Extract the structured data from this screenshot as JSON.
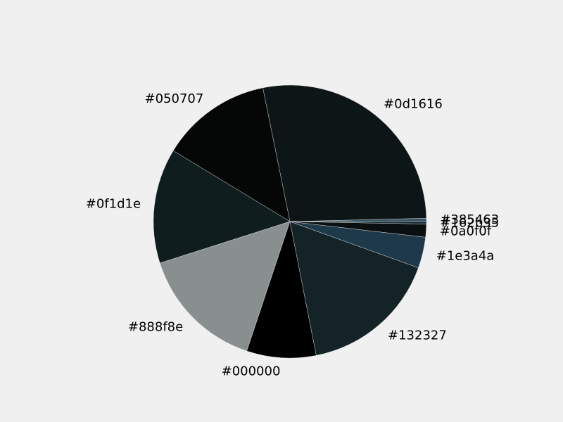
{
  "chart_data": {
    "type": "pie",
    "start": "3 o'clock",
    "direction": "counterclockwise",
    "slices": [
      {
        "label": "#385463",
        "value": 0.4,
        "color": "#385463"
      },
      {
        "label": "#0d1616",
        "value": 28.8,
        "color": "#0d1616"
      },
      {
        "label": "#050707",
        "value": 13.6,
        "color": "#050707"
      },
      {
        "label": "#0f1d1e",
        "value": 14.1,
        "color": "#0f1d1e"
      },
      {
        "label": "#888f8e",
        "value": 15.5,
        "color": "#888f8e"
      },
      {
        "label": "#000000",
        "value": 8.5,
        "color": "#000000"
      },
      {
        "label": "#132327",
        "value": 17.0,
        "color": "#132327"
      },
      {
        "label": "#1e3a4a",
        "value": 3.8,
        "color": "#1e3a4a"
      },
      {
        "label": "#0a0f0f",
        "value": 1.6,
        "color": "#0a0f0f"
      },
      {
        "label": "#162b35",
        "value": 0.3,
        "color": "#162b35"
      }
    ]
  }
}
